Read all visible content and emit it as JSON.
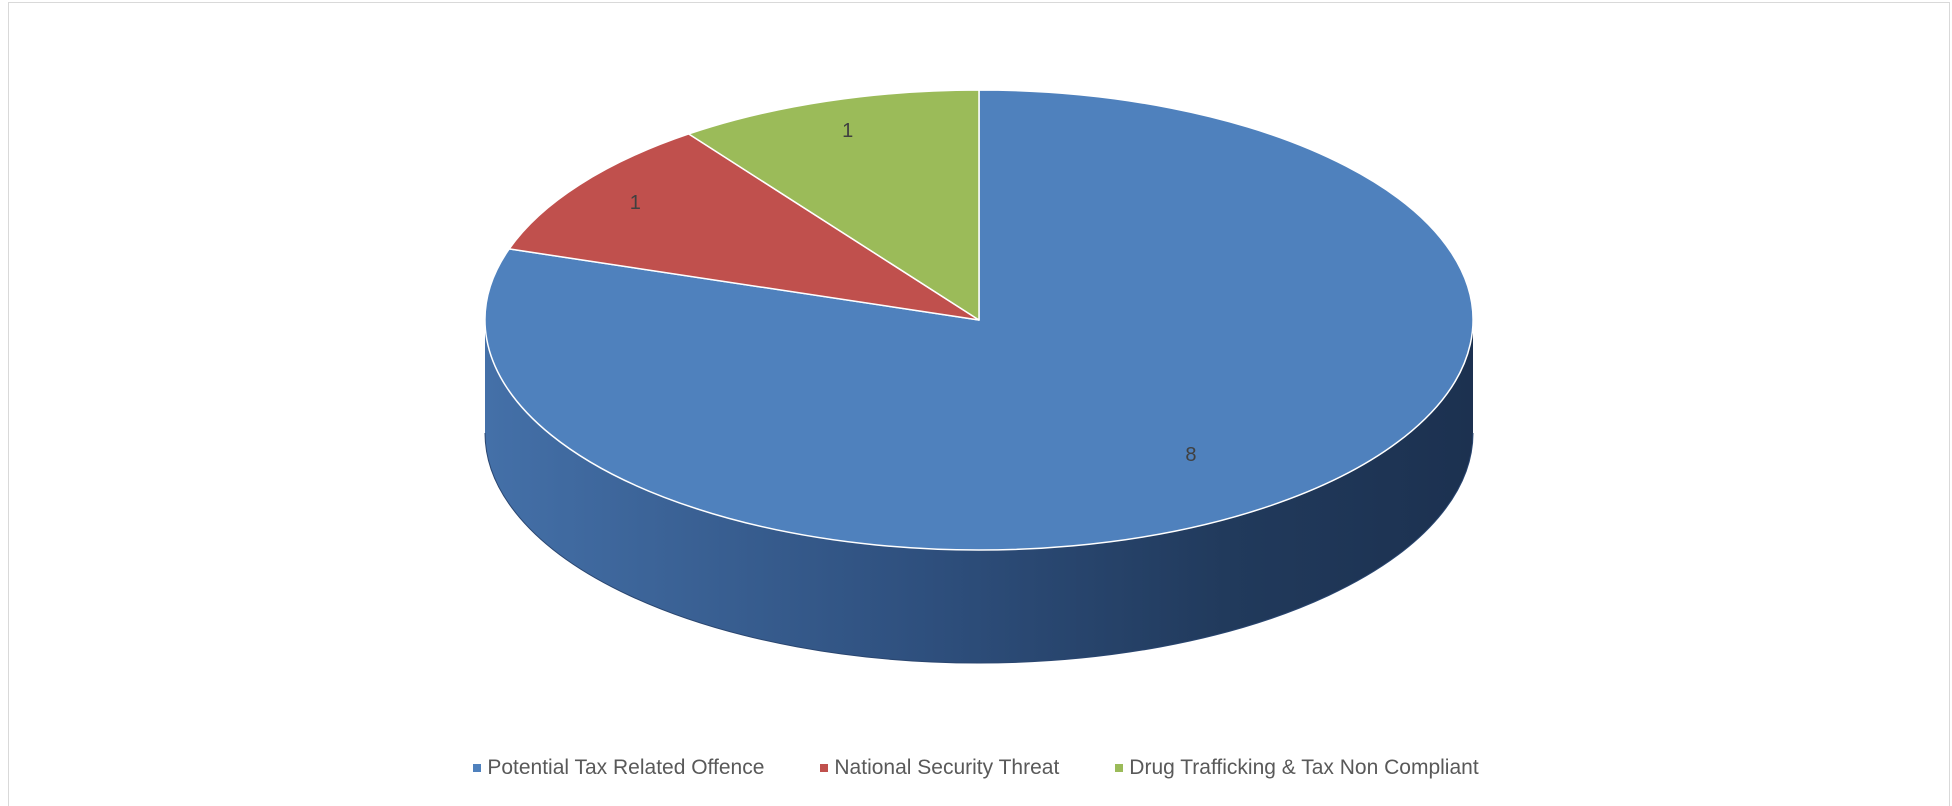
{
  "chart_data": {
    "type": "pie",
    "style": "3d",
    "categories": [
      "Potential Tax Related Offence",
      "National Security Threat",
      "Drug Trafficking & Tax Non Compliant"
    ],
    "values": [
      8,
      1,
      1
    ],
    "colors": [
      "#4f81bd",
      "#c0504d",
      "#9bbb59"
    ],
    "data_labels": [
      "8",
      "1",
      "1"
    ],
    "legend": "bottom",
    "title": ""
  }
}
